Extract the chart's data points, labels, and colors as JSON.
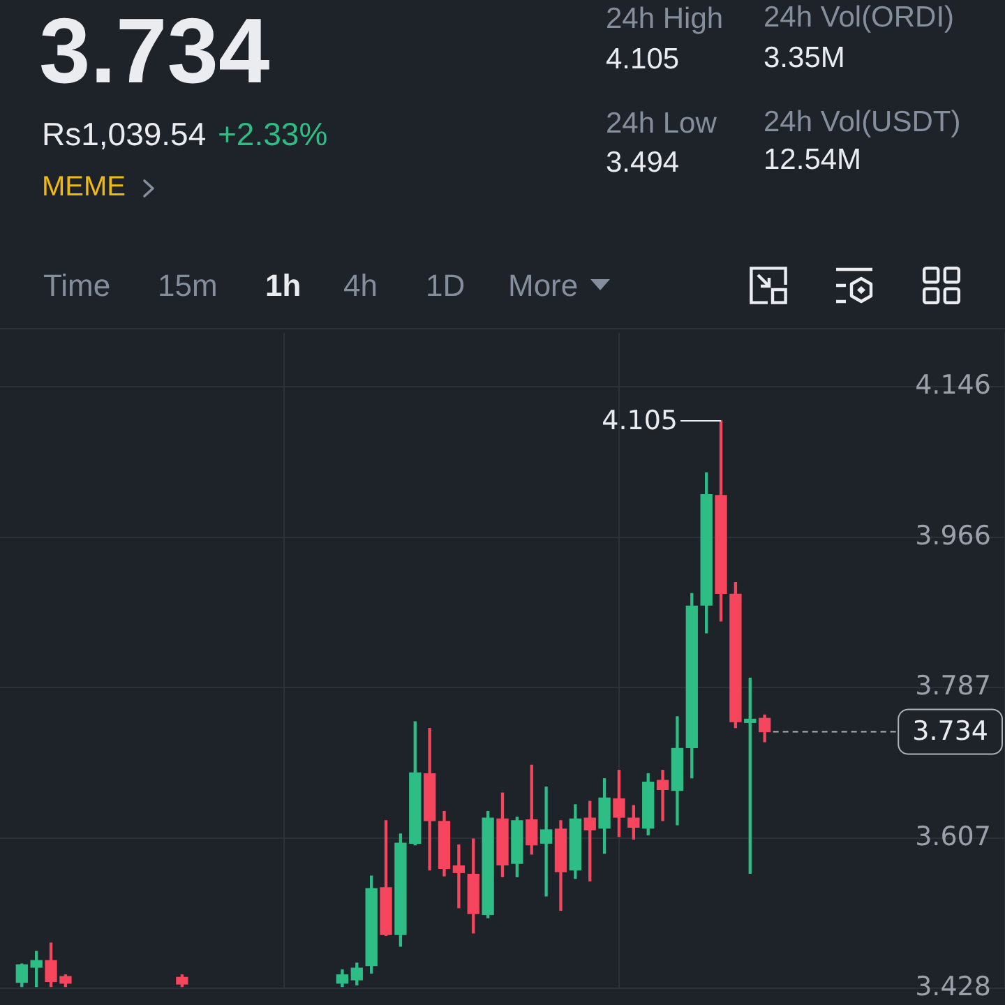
{
  "chart_data": [
    {
      "type": "other",
      "title": "3.734",
      "subtitle": "Rs1,039.54",
      "annotations": [
        "+2.33%",
        "MEME",
        "24h High",
        "4.105",
        "24h Low",
        "3.494",
        "24h Vol(ORDI)",
        "3.35M",
        "24h Vol(USDT)",
        "12.54M",
        "Time",
        "15m",
        "1h",
        "4h",
        "1D",
        "More"
      ]
    },
    {
      "type": "candlestick",
      "categories": [
        null,
        null,
        null,
        null,
        null,
        null,
        null,
        null,
        null,
        null,
        null,
        null,
        null,
        null,
        null,
        null,
        null,
        null,
        null,
        null,
        null,
        null,
        null,
        null,
        null,
        null,
        null,
        null,
        null,
        null,
        null,
        null,
        null,
        null,
        null,
        null,
        null,
        null,
        null,
        null,
        null,
        null,
        null,
        null,
        null,
        null,
        null,
        null,
        null,
        null,
        null,
        null,
        null,
        null,
        null,
        null,
        null,
        null,
        null,
        null,
        null,
        null,
        null,
        null,
        null,
        null,
        null,
        null,
        null
      ],
      "ohlc": [
        null,
        [
          3.435,
          3.457,
          3.43,
          3.456
        ],
        [
          3.453,
          3.472,
          3.43,
          3.461
        ],
        [
          3.461,
          3.482,
          3.43,
          3.436
        ],
        [
          3.442,
          3.444,
          3.43,
          3.434
        ],
        null,
        null,
        null,
        null,
        null,
        null,
        null,
        [
          3.441,
          3.444,
          3.43,
          3.433
        ],
        null,
        null,
        null,
        null,
        null,
        null,
        null,
        null,
        null,
        null,
        [
          3.434,
          3.45,
          3.43,
          3.444
        ],
        [
          3.438,
          3.458,
          3.432,
          3.452
        ],
        [
          3.455,
          3.562,
          3.446,
          3.547
        ],
        [
          3.548,
          3.628,
          3.491,
          3.492
        ],
        [
          3.492,
          3.612,
          3.478,
          3.601
        ],
        [
          3.601,
          3.746,
          3.599,
          3.685
        ],
        [
          3.684,
          3.738,
          3.569,
          3.628
        ],
        [
          3.627,
          3.639,
          3.562,
          3.571
        ],
        [
          3.574,
          3.599,
          3.524,
          3.566
        ],
        [
          3.564,
          3.606,
          3.494,
          3.517
        ],
        [
          3.516,
          3.639,
          3.512,
          3.631
        ],
        [
          3.63,
          3.661,
          3.561,
          3.575
        ],
        [
          3.577,
          3.632,
          3.561,
          3.628
        ],
        [
          3.629,
          3.694,
          3.588,
          3.599
        ],
        [
          3.601,
          3.668,
          3.538,
          3.617
        ],
        [
          3.618,
          3.628,
          3.521,
          3.567
        ],
        [
          3.569,
          3.647,
          3.559,
          3.63
        ],
        [
          3.631,
          3.651,
          3.556,
          3.617
        ],
        [
          3.619,
          3.678,
          3.589,
          3.655
        ],
        [
          3.654,
          3.688,
          3.609,
          3.632
        ],
        [
          3.631,
          3.646,
          3.606,
          3.62
        ],
        [
          3.619,
          3.684,
          3.611,
          3.674
        ],
        [
          3.676,
          3.688,
          3.628,
          3.665
        ],
        [
          3.664,
          3.752,
          3.623,
          3.714
        ],
        [
          3.715,
          3.899,
          3.679,
          3.884
        ],
        [
          3.885,
          4.043,
          3.852,
          4.017
        ],
        [
          4.016,
          4.105,
          3.866,
          3.899
        ],
        [
          3.898,
          3.912,
          3.739,
          3.746
        ],
        [
          3.745,
          3.798,
          3.565,
          3.749
        ],
        [
          3.75,
          3.754,
          3.722,
          3.734
        ],
        null,
        null,
        null,
        null,
        null,
        null,
        null,
        null,
        null,
        null,
        null,
        null,
        null,
        null,
        null,
        null
      ],
      "colors": [
        null,
        "#2ebd85",
        "#2ebd85",
        "#f6465d",
        "#f6465d",
        null,
        null,
        null,
        null,
        null,
        null,
        null,
        "#f6465d",
        null,
        null,
        null,
        null,
        null,
        null,
        null,
        null,
        null,
        null,
        "#2ebd85",
        "#2ebd85",
        "#2ebd85",
        "#f6465d",
        "#2ebd85",
        "#2ebd85",
        "#f6465d",
        "#f6465d",
        "#f6465d",
        "#f6465d",
        "#2ebd85",
        "#f6465d",
        "#2ebd85",
        "#f6465d",
        "#2ebd85",
        "#f6465d",
        "#2ebd85",
        "#f6465d",
        "#2ebd85",
        "#f6465d",
        "#f6465d",
        "#2ebd85",
        "#f6465d",
        "#2ebd85",
        "#2ebd85",
        "#2ebd85",
        "#f6465d",
        "#f6465d",
        "#2ebd85",
        "#f6465d",
        null,
        null,
        null,
        null,
        null,
        null,
        null,
        null,
        null,
        null,
        null,
        null,
        null,
        null,
        null,
        null
      ],
      "ylim": [
        3.428,
        4.21
      ],
      "yticks": [
        3.428,
        3.607,
        3.787,
        3.966,
        4.146
      ],
      "grid": true,
      "tick_labels": "y",
      "annotations": [
        "4.105"
      ],
      "ref_lines": [
        {
          "axis": "y",
          "value": 3.734,
          "label": "3.734",
          "line_style": "dashed",
          "color": "#aeb4bc"
        }
      ]
    }
  ]
}
